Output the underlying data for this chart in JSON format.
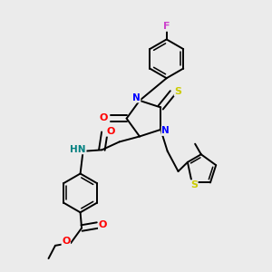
{
  "bg_color": "#ebebeb",
  "atom_colors": {
    "N": "#0000ff",
    "O": "#ff0000",
    "S_thio": "#cccc00",
    "F": "#cc44cc",
    "HN": "#008080",
    "C": "#000000"
  },
  "bond_lw": 1.4,
  "ring5_r": 0.07,
  "ring6_r": 0.072,
  "ring_th_r": 0.058
}
